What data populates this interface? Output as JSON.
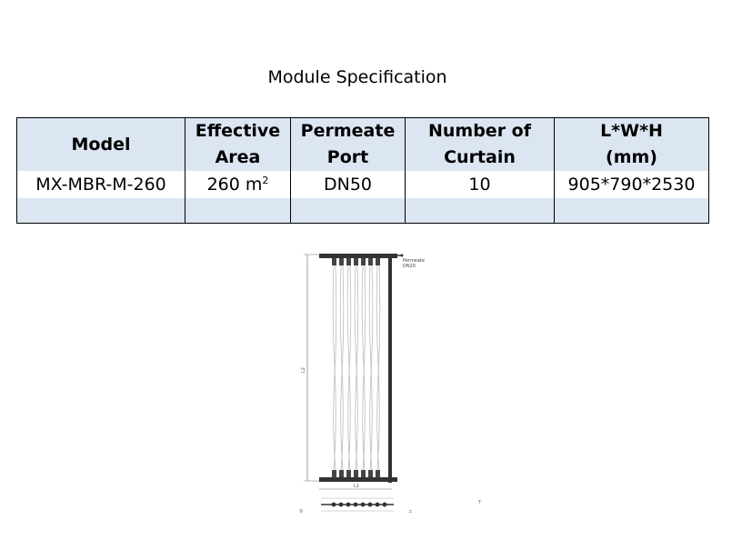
{
  "title": "Module Specification",
  "table": {
    "headers": [
      {
        "line1": "Model",
        "line2": ""
      },
      {
        "line1": "Effective",
        "line2": "Area"
      },
      {
        "line1": "Permeate",
        "line2": "Port"
      },
      {
        "line1": "Number of",
        "line2": "Curtain"
      },
      {
        "line1": "L*W*H",
        "line2": "(mm)"
      }
    ],
    "rows": [
      {
        "model": "MX-MBR-M-260",
        "area": "260 m",
        "area_sup": "2",
        "port": "DN50",
        "curtain": "10",
        "dims": "905*790*2530"
      }
    ]
  },
  "drawing": {
    "permeate_label": "Permeate",
    "permeate_size": "DN20",
    "height_label": "L2",
    "length_label": "L1",
    "bottom_label_left": "W",
    "bottom_label_right": "H",
    "stray_mark": "T"
  }
}
